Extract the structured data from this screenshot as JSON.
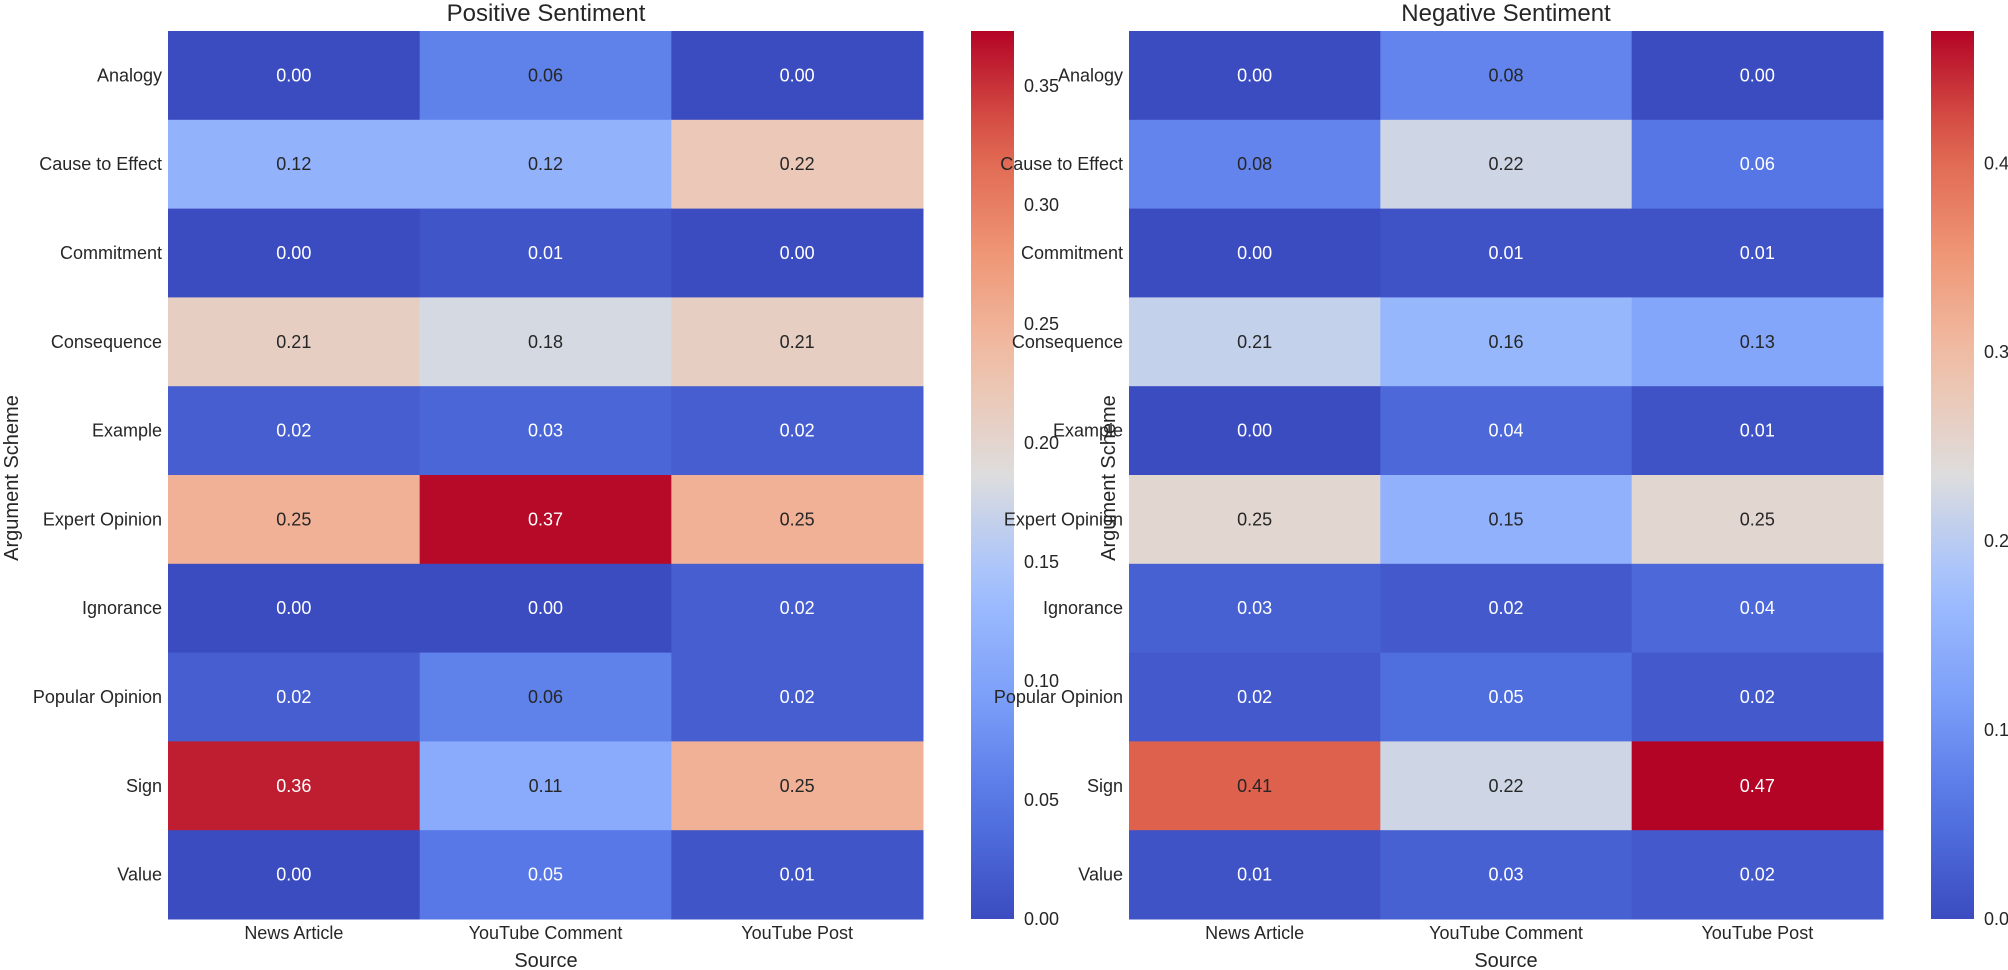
{
  "chart_data": [
    {
      "type": "heatmap",
      "title": "Positive Sentiment",
      "xlabel": "Source",
      "ylabel": "Argument Scheme",
      "x_categories": [
        "News Article",
        "YouTube Comment",
        "YouTube Post"
      ],
      "y_categories": [
        "Analogy",
        "Cause to Effect",
        "Commitment",
        "Consequence",
        "Example",
        "Expert Opinion",
        "Ignorance",
        "Popular Opinion",
        "Sign",
        "Value"
      ],
      "values": [
        [
          0.0,
          0.06,
          0.0
        ],
        [
          0.12,
          0.12,
          0.22
        ],
        [
          0.0,
          0.01,
          0.0
        ],
        [
          0.21,
          0.18,
          0.21
        ],
        [
          0.02,
          0.03,
          0.02
        ],
        [
          0.25,
          0.37,
          0.25
        ],
        [
          0.0,
          0.0,
          0.02
        ],
        [
          0.02,
          0.06,
          0.02
        ],
        [
          0.36,
          0.11,
          0.25
        ],
        [
          0.0,
          0.05,
          0.01
        ]
      ],
      "colorbar": {
        "min": 0.0,
        "max": 0.373,
        "ticks": [
          0.0,
          0.05,
          0.1,
          0.15,
          0.2,
          0.25,
          0.3,
          0.35
        ],
        "tick_labels": [
          "0.00",
          "0.05",
          "0.10",
          "0.15",
          "0.20",
          "0.25",
          "0.30",
          "0.35"
        ]
      },
      "colormap": "coolwarm"
    },
    {
      "type": "heatmap",
      "title": "Negative Sentiment",
      "xlabel": "Source",
      "ylabel": "Argument Scheme",
      "x_categories": [
        "News Article",
        "YouTube Comment",
        "YouTube Post"
      ],
      "y_categories": [
        "Analogy",
        "Cause to Effect",
        "Commitment",
        "Consequence",
        "Example",
        "Expert Opinion",
        "Ignorance",
        "Popular Opinion",
        "Sign",
        "Value"
      ],
      "values": [
        [
          0.0,
          0.08,
          0.0
        ],
        [
          0.08,
          0.22,
          0.06
        ],
        [
          0.0,
          0.01,
          0.01
        ],
        [
          0.21,
          0.16,
          0.13
        ],
        [
          0.0,
          0.04,
          0.01
        ],
        [
          0.25,
          0.15,
          0.25
        ],
        [
          0.03,
          0.02,
          0.04
        ],
        [
          0.02,
          0.05,
          0.02
        ],
        [
          0.41,
          0.22,
          0.47
        ],
        [
          0.01,
          0.03,
          0.02
        ]
      ],
      "colorbar": {
        "min": 0.0,
        "max": 0.47,
        "ticks": [
          0.0,
          0.1,
          0.2,
          0.3,
          0.4
        ],
        "tick_labels": [
          "0.0",
          "0.1",
          "0.2",
          "0.3",
          "0.4"
        ]
      },
      "colormap": "coolwarm"
    }
  ]
}
